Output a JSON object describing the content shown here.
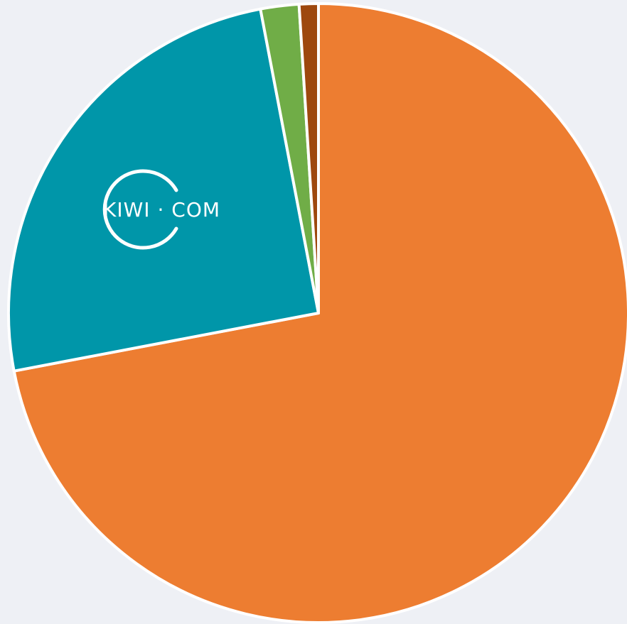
{
  "chart_data": {
    "type": "pie",
    "categories": [
      null,
      null,
      null,
      null
    ],
    "values": [
      72,
      25,
      2,
      1
    ],
    "colors": [
      "#ed7d31",
      "#0096a9",
      "#70ad47",
      "#9e480e"
    ],
    "annotation": "KIWI · COM"
  }
}
